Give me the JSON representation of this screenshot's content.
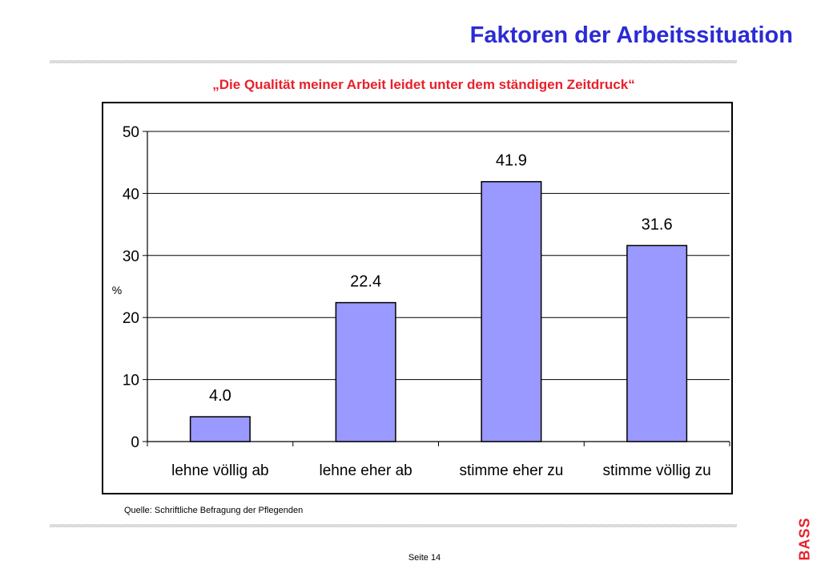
{
  "slide": {
    "title": "Faktoren der Arbeitssituation",
    "source_text": "Quelle:  Schriftliche Befragung der Pflegenden",
    "page_label": "Seite 14",
    "logo_text": "BASS",
    "colors": {
      "title": "#2b2bd6",
      "accent": "#e8202a",
      "bar": "#9999ff"
    }
  },
  "chart_data": {
    "type": "bar",
    "title": "„Die Qualität meiner Arbeit leidet unter dem ständigen Zeitdruck“",
    "categories": [
      "lehne völlig ab",
      "lehne eher ab",
      "stimme eher zu",
      "stimme völlig zu"
    ],
    "values": [
      4.0,
      22.4,
      41.9,
      31.6
    ],
    "value_labels": [
      "4.0",
      "22.4",
      "41.9",
      "31.6"
    ],
    "ylabel": "%",
    "xlabel": "",
    "ylim": [
      0,
      50
    ],
    "yticks": [
      0,
      10,
      20,
      30,
      40,
      50
    ],
    "grid": true,
    "legend": "none"
  }
}
